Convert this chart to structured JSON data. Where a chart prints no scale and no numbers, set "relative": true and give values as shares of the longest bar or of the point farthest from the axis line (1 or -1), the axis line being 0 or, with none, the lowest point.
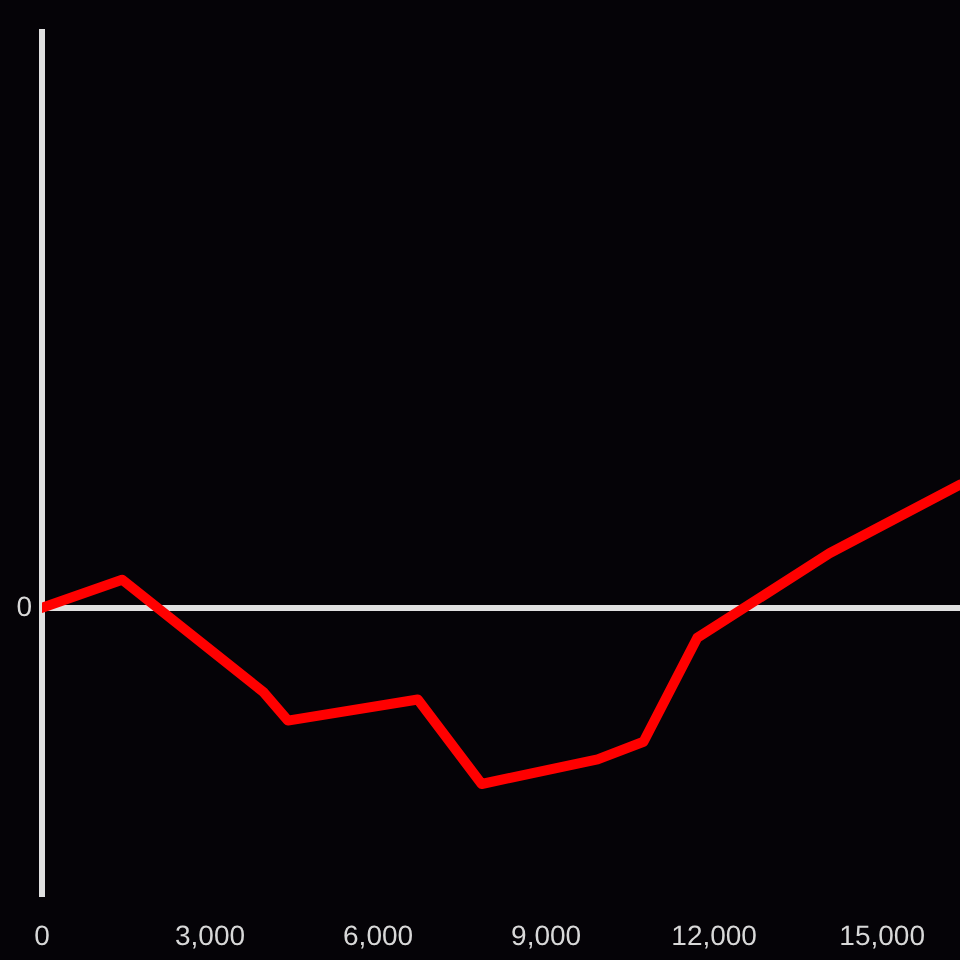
{
  "chart_data": {
    "type": "line",
    "relative": true,
    "x": [
      0,
      1430,
      3960,
      4390,
      6710,
      7850,
      9920,
      10740,
      11700,
      14060,
      16390
    ],
    "values": [
      0,
      0.16,
      -0.48,
      -0.64,
      -0.52,
      -1,
      -0.86,
      -0.76,
      -0.17,
      0.31,
      0.7
    ],
    "color": "#ff0000",
    "xlim": [
      0,
      16390
    ],
    "xticks": [
      0,
      {
        "value": 3000,
        "label": "3,000"
      },
      {
        "value": 6000,
        "label": "6,000"
      },
      {
        "value": 9000,
        "label": "9,000"
      },
      {
        "value": 12000,
        "label": "12,000"
      },
      {
        "value": 15000,
        "label": "15,000"
      }
    ],
    "ref_lines": [
      {
        "axis": "y",
        "value": 0,
        "label": "0",
        "color": "#e0e0e0"
      }
    ]
  }
}
